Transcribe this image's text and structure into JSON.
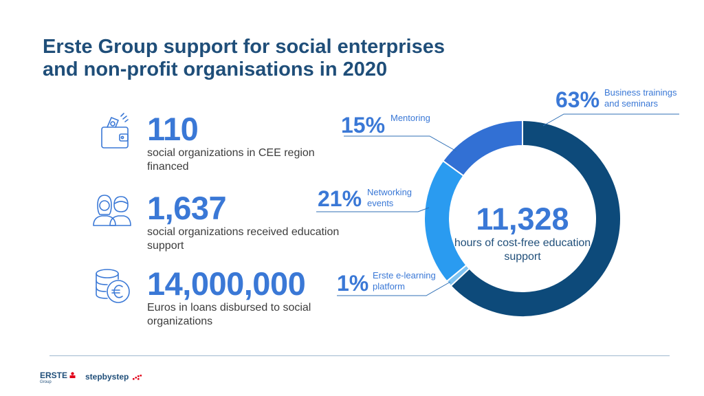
{
  "title": {
    "line1": "Erste Group support for social enterprises",
    "line2": "and non-profit organisations in 2020"
  },
  "stats": [
    {
      "value": "110",
      "description": "social organizations in CEE region financed",
      "icon": "wallet-money-icon"
    },
    {
      "value": "1,637",
      "description": "social organizations received education support",
      "icon": "people-icon"
    },
    {
      "value": "14,000,000",
      "description": "Euros in loans disbursed to social organizations",
      "icon": "euro-coins-icon"
    }
  ],
  "chart_data": {
    "type": "pie",
    "donut": true,
    "center_value": "11,328",
    "center_label": "hours of cost-free education support",
    "slices": [
      {
        "label": "Business trainings and seminars",
        "percent_label": "63%",
        "value": 63,
        "color": "#0d4a7a"
      },
      {
        "label": "Erste e-learning platform",
        "percent_label": "1%",
        "value": 1,
        "color": "#7ec3f2"
      },
      {
        "label": "Networking events",
        "percent_label": "21%",
        "value": 21,
        "color": "#2a9bf0"
      },
      {
        "label": "Mentoring",
        "percent_label": "15%",
        "value": 15,
        "color": "#3270d4"
      }
    ]
  },
  "footer": {
    "erste_logo_text": "ERSTE",
    "erste_logo_sub": "Group",
    "partner_logo_text": "stepbystep"
  },
  "colors": {
    "title": "#1f4e79",
    "accent": "#3a78d6",
    "leader_line": "#2f6fb5"
  }
}
